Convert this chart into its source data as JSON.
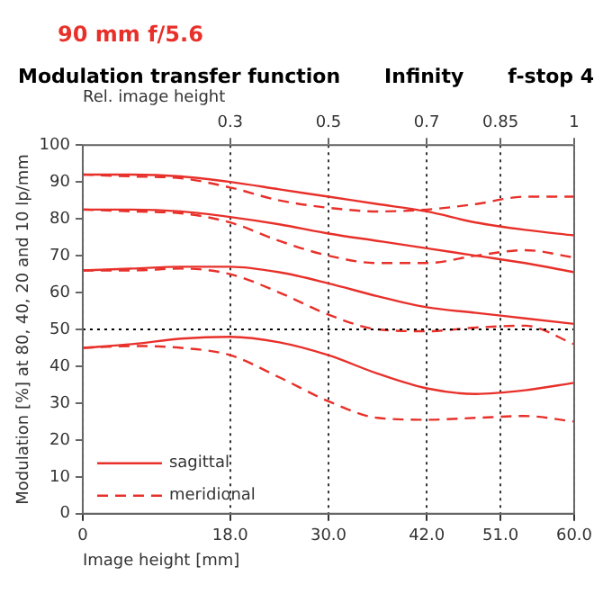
{
  "chart_data": {
    "type": "line",
    "title": "90 mm f/5.6",
    "annotations": [
      "Modulation transfer function",
      "Infinity",
      "f-stop 4"
    ],
    "xlabel": "Image height [mm]",
    "ylabel": "Modulation [%] at 80, 40, 20 and 10 lp/mm",
    "x2label": "Rel. image height",
    "x": [
      0,
      6,
      12,
      18,
      24,
      30,
      36,
      42,
      48,
      54,
      60
    ],
    "series": [
      {
        "name": "sagittal",
        "color": "#e8302a",
        "line_style": "solid",
        "values": [
          92,
          92,
          91.5,
          90,
          88,
          86,
          84,
          82,
          79,
          77,
          75.5
        ]
      },
      {
        "name": "meridional",
        "color": "#e8302a",
        "line_style": "dashed",
        "values": [
          92,
          91.5,
          91,
          88.5,
          85,
          83,
          82,
          82.5,
          84,
          86,
          86
        ]
      },
      {
        "color": "#e8302a",
        "line_style": "solid",
        "values": [
          82.5,
          82.5,
          82,
          80.5,
          78.5,
          76,
          74,
          72,
          70,
          68,
          65.5
        ]
      },
      {
        "color": "#e8302a",
        "line_style": "dashed",
        "values": [
          82.5,
          82,
          81.5,
          79,
          74,
          70,
          68,
          68,
          70,
          71.5,
          69.5
        ]
      },
      {
        "color": "#e8302a",
        "line_style": "solid",
        "values": [
          66,
          66.5,
          67,
          67,
          65.5,
          62.5,
          59,
          56,
          54.5,
          53,
          51.5
        ]
      },
      {
        "color": "#e8302a",
        "line_style": "dashed",
        "values": [
          66,
          66,
          66.5,
          65,
          60,
          54,
          50,
          49.5,
          50.5,
          51,
          46
        ]
      },
      {
        "color": "#e8302a",
        "line_style": "solid",
        "values": [
          45,
          46,
          47.5,
          48,
          46.5,
          43,
          38,
          34,
          32.5,
          33.5,
          35.5
        ]
      },
      {
        "color": "#e8302a",
        "line_style": "dashed",
        "values": [
          45,
          45.5,
          45,
          43,
          37,
          30.5,
          26,
          25.5,
          26,
          26.5,
          25
        ]
      }
    ],
    "xlim": [
      0,
      60
    ],
    "xticks": [
      0,
      {
        "value": 18,
        "label": "18.0"
      },
      {
        "value": 30,
        "label": "30.0"
      },
      {
        "value": 42,
        "label": "42.0"
      },
      {
        "value": 51,
        "label": "51.0"
      },
      {
        "value": 60,
        "label": "60.0"
      }
    ],
    "x2lim": [
      0,
      1
    ],
    "x2ticks": [
      0.3,
      0.5,
      0.7,
      0.85,
      1
    ],
    "ylim": [
      0,
      100
    ],
    "yticks": [
      0,
      10,
      20,
      30,
      40,
      50,
      60,
      70,
      80,
      90,
      100
    ],
    "ref_lines": [
      {
        "axis": "y",
        "value": 50,
        "color": "#000000",
        "line_style": "dotted"
      }
    ],
    "grid": "x",
    "legend": "bottom left",
    "marker": "none"
  }
}
